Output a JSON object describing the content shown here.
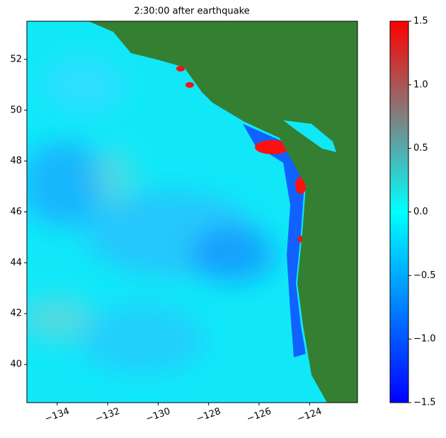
{
  "chart_data": {
    "type": "heatmap-map",
    "title": "2:30:00 after earthquake",
    "xlim": [
      -135.2,
      -122.1
    ],
    "ylim": [
      38.5,
      53.5
    ],
    "xticks": [
      {
        "value": -134,
        "label": "−134"
      },
      {
        "value": -132,
        "label": "−132"
      },
      {
        "value": -130,
        "label": "−130"
      },
      {
        "value": -128,
        "label": "−128"
      },
      {
        "value": -126,
        "label": "−126"
      },
      {
        "value": -124,
        "label": "−124"
      }
    ],
    "yticks": [
      40,
      42,
      44,
      46,
      48,
      50,
      52
    ],
    "colorbar": {
      "lim": [
        -1.5,
        1.5
      ],
      "ticks": [
        {
          "value": -1.5,
          "label": "−1.5"
        },
        {
          "value": -1.0,
          "label": "−1.0"
        },
        {
          "value": -0.5,
          "label": "−0.5"
        },
        {
          "value": 0.0,
          "label": "0.0"
        },
        0.5,
        {
          "value": 1.0,
          "label": "1.0"
        },
        1.5
      ],
      "colors": [
        "#0000ff",
        "#0080ff",
        "#00ffff",
        "#808080",
        "#ff0000"
      ]
    }
  }
}
